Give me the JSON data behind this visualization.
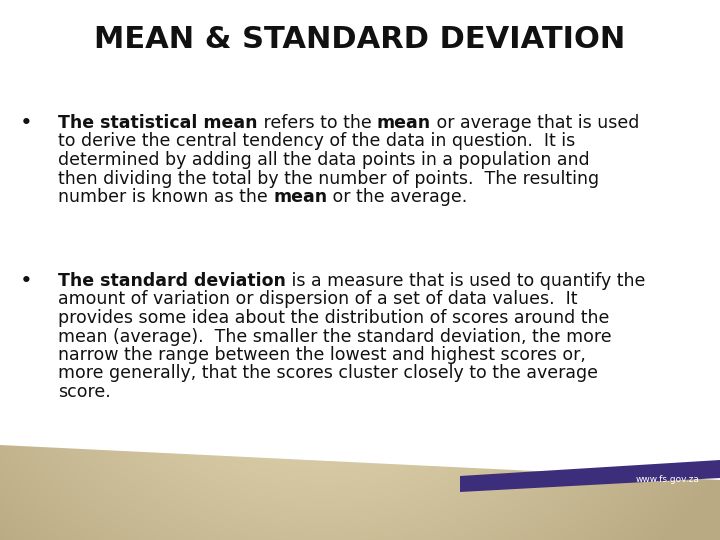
{
  "title": "MEAN & STANDARD DEVIATION",
  "title_fontsize": 22,
  "title_color": "#111111",
  "accent_color": "#3d2e7c",
  "footer_text": "www.fs.gov.za",
  "body_fontsize": 12.5,
  "body_color": "#111111",
  "lines_b1": [
    [
      [
        "bold",
        "The statistical mean"
      ],
      [
        "normal",
        " refers to the "
      ],
      [
        "bold",
        "mean"
      ],
      [
        "normal",
        " or average that is used"
      ]
    ],
    [
      [
        "normal",
        "to derive the central tendency of the data in question.  It is"
      ]
    ],
    [
      [
        "normal",
        "determined by adding all the data points in a population and"
      ]
    ],
    [
      [
        "normal",
        "then dividing the total by the number of points.  The resulting"
      ]
    ],
    [
      [
        "normal",
        "number is known as the "
      ],
      [
        "bold",
        "mean"
      ],
      [
        "normal",
        " or the average."
      ]
    ]
  ],
  "lines_b2": [
    [
      [
        "bold",
        "The standard deviation"
      ],
      [
        "normal",
        " is a measure that is used to quantify the"
      ]
    ],
    [
      [
        "normal",
        "amount of variation or dispersion of a set of data values.  It"
      ]
    ],
    [
      [
        "normal",
        "provides some idea about the distribution of scores around the"
      ]
    ],
    [
      [
        "normal",
        "mean (average).  The smaller the standard deviation, the more"
      ]
    ],
    [
      [
        "normal",
        "narrow the range between the lowest and highest scores or,"
      ]
    ],
    [
      [
        "normal",
        "more generally, that the scores cluster closely to the average"
      ]
    ],
    [
      [
        "normal",
        "score."
      ]
    ]
  ]
}
